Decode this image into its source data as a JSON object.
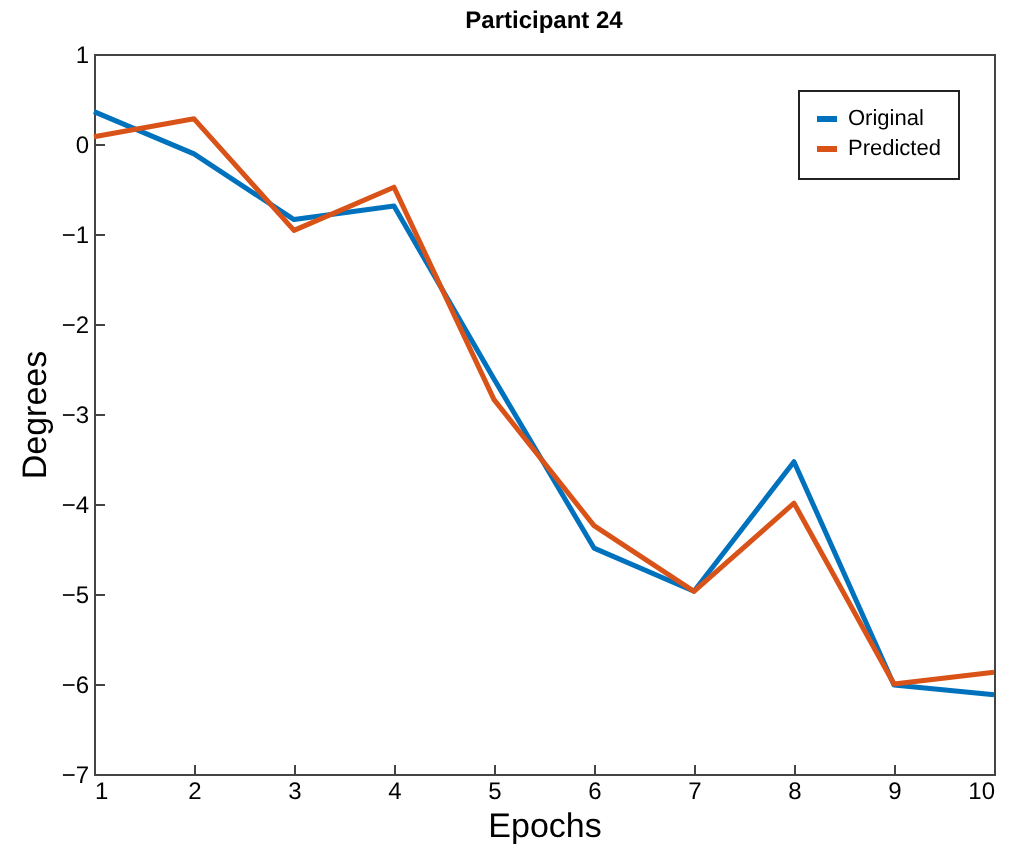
{
  "chart_data": {
    "type": "line",
    "title": "Participant 24",
    "xlabel": "Epochs",
    "ylabel": "Degrees",
    "x": [
      1,
      2,
      3,
      4,
      5,
      6,
      7,
      8,
      9,
      10
    ],
    "series": [
      {
        "name": "Original",
        "color": "#0072bd",
        "values": [
          0.36,
          -0.11,
          -0.84,
          -0.69,
          -2.61,
          -4.49,
          -4.97,
          -3.53,
          -6.01,
          -6.12
        ]
      },
      {
        "name": "Predicted",
        "color": "#d95319",
        "values": [
          0.08,
          0.28,
          -0.96,
          -0.48,
          -2.84,
          -4.24,
          -4.97,
          -3.99,
          -6.0,
          -5.87
        ]
      }
    ],
    "xlim": [
      1,
      10
    ],
    "xticks": [
      1,
      2,
      3,
      4,
      5,
      6,
      7,
      8,
      9,
      10
    ],
    "ylim": [
      -7,
      1
    ],
    "yticks": [
      -7,
      -6,
      -5,
      -4,
      -3,
      -2,
      -1,
      0,
      1
    ],
    "grid": false,
    "legend": "top right",
    "marker": "none",
    "line_style": "solid"
  }
}
